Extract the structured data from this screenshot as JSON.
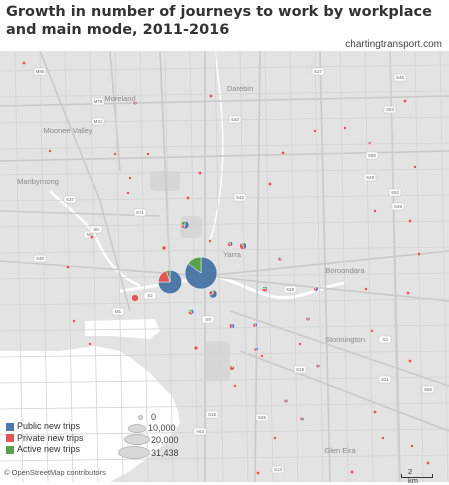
{
  "title": "Growth in number of journeys to work by workplace and main mode, 2011-2016",
  "source": "chartingtransport.com",
  "credit": "© OpenStreetMap contributors",
  "scale_label": "2 km",
  "legend": {
    "items": [
      {
        "label": "Public new trips",
        "color": "#4e79a7"
      },
      {
        "label": "Private new trips",
        "color": "#e15759"
      },
      {
        "label": "Active new trips",
        "color": "#59a14f"
      }
    ],
    "sizes": [
      "0",
      "10,000",
      "20,000",
      "31,438"
    ]
  },
  "place_labels": [
    "Moreland",
    "Darebin",
    "Moonee Valley",
    "Maribyrnong",
    "Yarra",
    "Boroondara",
    "Stonnington",
    "Glen Eira"
  ],
  "road_labels": [
    "M80",
    "M79",
    "M31",
    "M3",
    "M1",
    "S27",
    "S40",
    "S53",
    "S46",
    "S60",
    "S52",
    "S48",
    "S49",
    "S37",
    "S45",
    "S71",
    "S8",
    "S30",
    "S2",
    "S9",
    "S28",
    "S3",
    "S19",
    "S21",
    "S25",
    "S15",
    "A63",
    "S13",
    "S55"
  ],
  "chart_data": {
    "type": "map-pie-bubbles",
    "title": "Growth in number of journeys to work by workplace and main mode, 2011-2016",
    "size_legend": [
      0,
      10000,
      20000,
      31438
    ],
    "series": [
      "Public new trips",
      "Private new trips",
      "Active new trips"
    ],
    "points": [
      {
        "total": 31438,
        "public": 0.85,
        "private": 0.0,
        "active": 0.15
      },
      {
        "total": 17000,
        "public": 0.75,
        "private": 0.2,
        "active": 0.05
      },
      {
        "total": 2000,
        "public": 0.7,
        "private": 0.25,
        "active": 0.05
      },
      {
        "total": 1500,
        "public": 0.0,
        "private": 1.0,
        "active": 0.0
      },
      {
        "total": 2000,
        "public": 0.55,
        "private": 0.2,
        "active": 0.25
      },
      {
        "total": 1500,
        "public": 0.45,
        "private": 0.45,
        "active": 0.1
      },
      {
        "total": 900,
        "public": 0.45,
        "private": 0.4,
        "active": 0.15
      },
      {
        "total": 1000,
        "public": 0.4,
        "private": 0.4,
        "active": 0.2
      },
      {
        "total": 900,
        "public": 0.25,
        "private": 0.55,
        "active": 0.2
      },
      {
        "total": 700,
        "public": 0.6,
        "private": 0.3,
        "active": 0.1
      },
      {
        "total": 900,
        "public": 0.5,
        "private": 0.5,
        "active": 0.0
      },
      {
        "total": 700,
        "public": 0.45,
        "private": 0.45,
        "active": 0.1
      },
      {
        "total": 600,
        "public": 0.4,
        "private": 0.45,
        "active": 0.15
      },
      {
        "total": 700,
        "public": 0.05,
        "private": 0.95,
        "active": 0.0
      },
      {
        "total": 500,
        "public": 0.25,
        "private": 0.75,
        "active": 0.0
      },
      {
        "total": 500,
        "public": 0.4,
        "private": 0.6,
        "active": 0.0
      },
      {
        "total": 500,
        "public": 0.4,
        "private": 0.6,
        "active": 0.0
      },
      {
        "total": 500,
        "public": 0.4,
        "private": 0.6,
        "active": 0.0
      },
      {
        "total": 500,
        "public": 0.5,
        "private": 0.5,
        "active": 0.0
      },
      {
        "total": 500,
        "public": 0.0,
        "private": 1.0,
        "active": 0.0
      },
      {
        "total": 500,
        "public": 0.0,
        "private": 1.0,
        "active": 0.0
      },
      {
        "total": 500,
        "public": 0.4,
        "private": 0.6,
        "active": 0.0
      },
      {
        "total": 400,
        "public": 0.0,
        "private": 1.0,
        "active": 0.0
      },
      {
        "total": 400,
        "public": 0.0,
        "private": 1.0,
        "active": 0.0
      },
      {
        "total": 400,
        "public": 0.3,
        "private": 0.7,
        "active": 0.0
      },
      {
        "total": 400,
        "public": 0.0,
        "private": 1.0,
        "active": 0.0
      },
      {
        "total": 400,
        "public": 0.0,
        "private": 1.0,
        "active": 0.0
      },
      {
        "total": 400,
        "public": 0.0,
        "private": 1.0,
        "active": 0.0
      },
      {
        "total": 400,
        "public": 0.0,
        "private": 1.0,
        "active": 0.0
      },
      {
        "total": 400,
        "public": 0.0,
        "private": 1.0,
        "active": 0.0
      },
      {
        "total": 400,
        "public": 0.0,
        "private": 1.0,
        "active": 0.0
      },
      {
        "total": 400,
        "public": 0.0,
        "private": 1.0,
        "active": 0.0
      },
      {
        "total": 400,
        "public": 0.0,
        "private": 1.0,
        "active": 0.0
      },
      {
        "total": 400,
        "public": 0.0,
        "private": 1.0,
        "active": 0.0
      },
      {
        "total": 400,
        "public": 0.0,
        "private": 1.0,
        "active": 0.0
      },
      {
        "total": 400,
        "public": 0.0,
        "private": 1.0,
        "active": 0.0
      },
      {
        "total": 400,
        "public": 0.0,
        "private": 1.0,
        "active": 0.0
      },
      {
        "total": 400,
        "public": 0.0,
        "private": 1.0,
        "active": 0.0
      },
      {
        "total": 400,
        "public": 0.0,
        "private": 1.0,
        "active": 0.0
      },
      {
        "total": 400,
        "public": 0.0,
        "private": 1.0,
        "active": 0.0
      },
      {
        "total": 150,
        "public": 0.0,
        "private": 1.0,
        "active": 0.0
      },
      {
        "total": 150,
        "public": 0.0,
        "private": 1.0,
        "active": 0.0
      },
      {
        "total": 150,
        "public": 0.0,
        "private": 1.0,
        "active": 0.0
      },
      {
        "total": 150,
        "public": 0.0,
        "private": 1.0,
        "active": 0.0
      },
      {
        "total": 150,
        "public": 0.0,
        "private": 1.0,
        "active": 0.0
      },
      {
        "total": 150,
        "public": 0.0,
        "private": 1.0,
        "active": 0.0
      },
      {
        "total": 150,
        "public": 0.0,
        "private": 1.0,
        "active": 0.0
      },
      {
        "total": 150,
        "public": 0.0,
        "private": 1.0,
        "active": 0.0
      },
      {
        "total": 150,
        "public": 0.0,
        "private": 1.0,
        "active": 0.0
      },
      {
        "total": 150,
        "public": 0.0,
        "private": 1.0,
        "active": 0.0
      },
      {
        "total": 150,
        "public": 0.0,
        "private": 1.0,
        "active": 0.0
      },
      {
        "total": 150,
        "public": 0.0,
        "private": 1.0,
        "active": 0.0
      },
      {
        "total": 150,
        "public": 0.0,
        "private": 1.0,
        "active": 0.0
      },
      {
        "total": 150,
        "public": 0.0,
        "private": 1.0,
        "active": 0.0
      },
      {
        "total": 150,
        "public": 0.0,
        "private": 1.0,
        "active": 0.0
      },
      {
        "total": 150,
        "public": 0.0,
        "private": 1.0,
        "active": 0.0
      },
      {
        "total": 150,
        "public": 0.0,
        "private": 1.0,
        "active": 0.0
      },
      {
        "total": 150,
        "public": 0.0,
        "private": 1.0,
        "active": 0.0
      },
      {
        "total": 150,
        "public": 0.0,
        "private": 1.0,
        "active": 0.0
      },
      {
        "total": 150,
        "public": 0.0,
        "private": 1.0,
        "active": 0.0
      }
    ]
  }
}
